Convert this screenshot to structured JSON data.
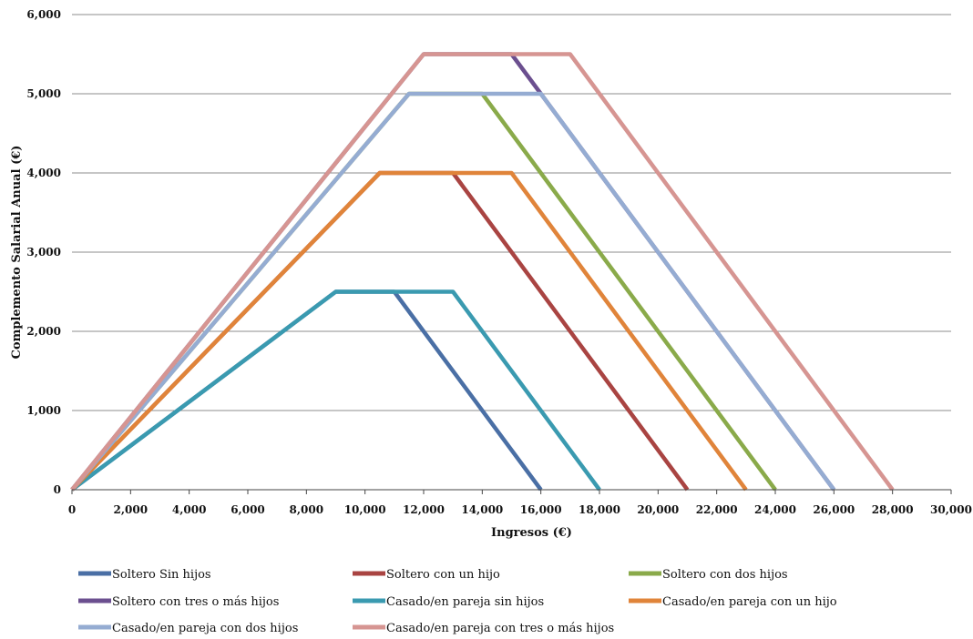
{
  "chart_data": {
    "type": "line",
    "xlabel": "Ingresos (€)",
    "ylabel": "Complemento Salarial Anual (€)",
    "xlim": [
      0,
      30000
    ],
    "ylim": [
      0,
      6000
    ],
    "x_ticks": [
      "0",
      "2,000",
      "4,000",
      "6,000",
      "8,000",
      "10,000",
      "12,000",
      "14,000",
      "16,000",
      "18,000",
      "20,000",
      "22,000",
      "24,000",
      "26,000",
      "28,000",
      "30,000"
    ],
    "y_ticks": [
      "0",
      "1,000",
      "2,000",
      "3,000",
      "4,000",
      "5,000",
      "6,000"
    ],
    "grid": "horizontal",
    "legend_position": "bottom",
    "series": [
      {
        "name": "Soltero Sin hijos",
        "color": "#4a6fa5",
        "points": [
          [
            0,
            0
          ],
          [
            9000,
            2500
          ],
          [
            11000,
            2500
          ],
          [
            16000,
            0
          ]
        ]
      },
      {
        "name": "Soltero con un hijo",
        "color": "#a94442",
        "points": [
          [
            0,
            0
          ],
          [
            10500,
            4000
          ],
          [
            13000,
            4000
          ],
          [
            21000,
            0
          ]
        ]
      },
      {
        "name": "Soltero con dos hijos",
        "color": "#8aaa4a",
        "points": [
          [
            0,
            0
          ],
          [
            11500,
            5000
          ],
          [
            14000,
            5000
          ],
          [
            24000,
            0
          ]
        ]
      },
      {
        "name": "Soltero con tres o más hijos",
        "color": "#6b4f8f",
        "points": [
          [
            0,
            0
          ],
          [
            12000,
            5500
          ],
          [
            15000,
            5500
          ],
          [
            26000,
            0
          ]
        ]
      },
      {
        "name": "Casado/en pareja sin hijos",
        "color": "#3a9ab0",
        "points": [
          [
            0,
            0
          ],
          [
            9000,
            2500
          ],
          [
            13000,
            2500
          ],
          [
            18000,
            0
          ]
        ]
      },
      {
        "name": "Casado/en pareja con un hijo",
        "color": "#e0843a",
        "points": [
          [
            0,
            0
          ],
          [
            10500,
            4000
          ],
          [
            15000,
            4000
          ],
          [
            23000,
            0
          ]
        ]
      },
      {
        "name": "Casado/en pareja con dos hijos",
        "color": "#95acd2",
        "points": [
          [
            0,
            0
          ],
          [
            11500,
            5000
          ],
          [
            16000,
            5000
          ],
          [
            26000,
            0
          ]
        ]
      },
      {
        "name": "Casado/en pareja con tres o más hijos",
        "color": "#d69592",
        "points": [
          [
            0,
            0
          ],
          [
            12000,
            5500
          ],
          [
            17000,
            5500
          ],
          [
            28000,
            0
          ]
        ]
      }
    ]
  }
}
